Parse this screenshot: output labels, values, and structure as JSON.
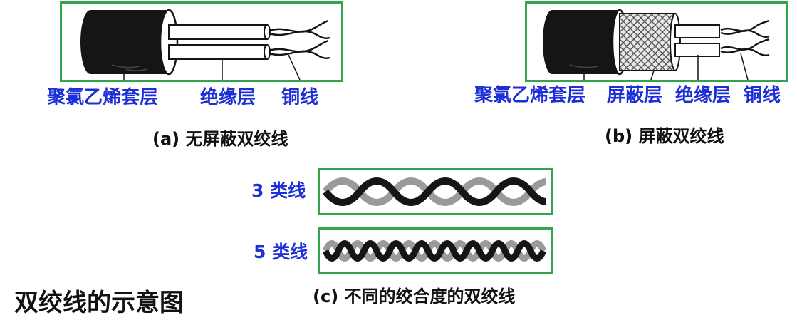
{
  "panel_a": {
    "labels": {
      "jacket": "聚氯乙烯套层",
      "insulation": "绝缘层",
      "copper": "铜线"
    },
    "caption": "(a) 无屏蔽双绞线"
  },
  "panel_b": {
    "labels": {
      "jacket": "聚氯乙烯套层",
      "shield": "屏蔽层",
      "insulation": "绝缘层",
      "copper": "铜线"
    },
    "caption": "(b) 屏蔽双绞线"
  },
  "panel_c": {
    "cat3_label": "3 类线",
    "cat5_label": "5 类线",
    "caption": "(c) 不同的绞合度的双绞线"
  },
  "page_title": "双绞线的示意图",
  "colors": {
    "frame": "#33a34d",
    "label": "#1d2fd6",
    "text": "#111111",
    "jacket": "#151515",
    "wire_light": "#9a9a9a"
  }
}
